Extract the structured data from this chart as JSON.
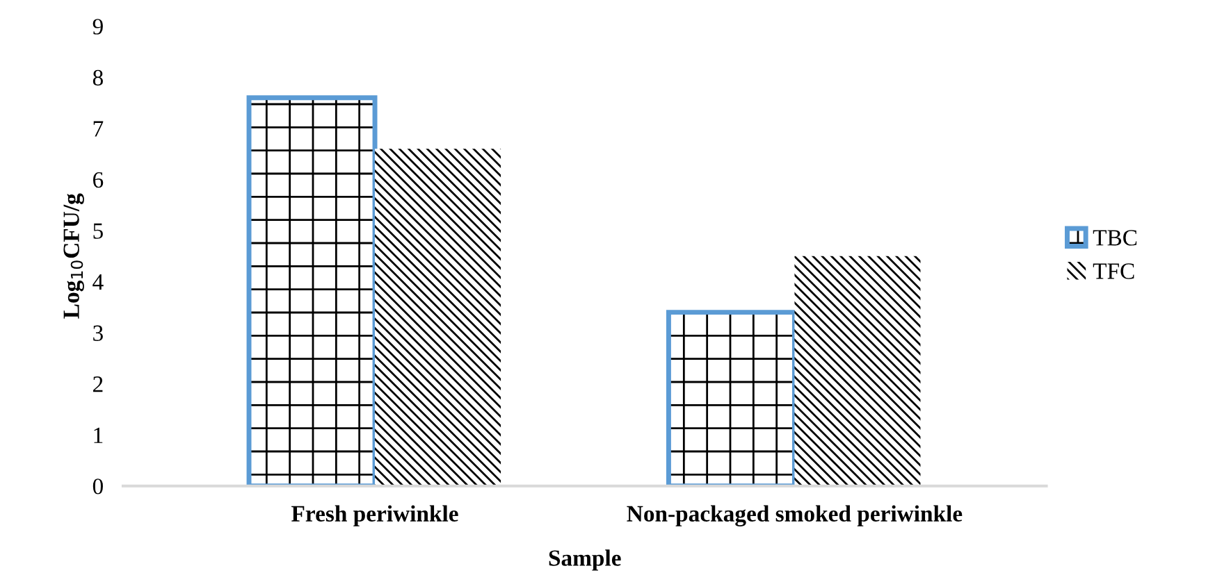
{
  "chart_data": {
    "type": "bar",
    "xlabel": "Sample",
    "ylabel": "Log$_{10}$CFU/g",
    "categories": [
      "Fresh periwinkle",
      "Non-packaged smoked periwinkle"
    ],
    "series": [
      {
        "name": "TBC",
        "color": "#5b9bd5",
        "values": [
          7.6,
          3.4
        ]
      },
      {
        "name": "TFC",
        "color": "#000000",
        "values": [
          6.6,
          4.5
        ]
      }
    ],
    "ylim": [
      0,
      9
    ],
    "yticks": [
      0,
      1,
      2,
      3,
      4,
      5,
      6,
      7,
      8,
      9
    ],
    "grid": false,
    "legend": "right"
  }
}
